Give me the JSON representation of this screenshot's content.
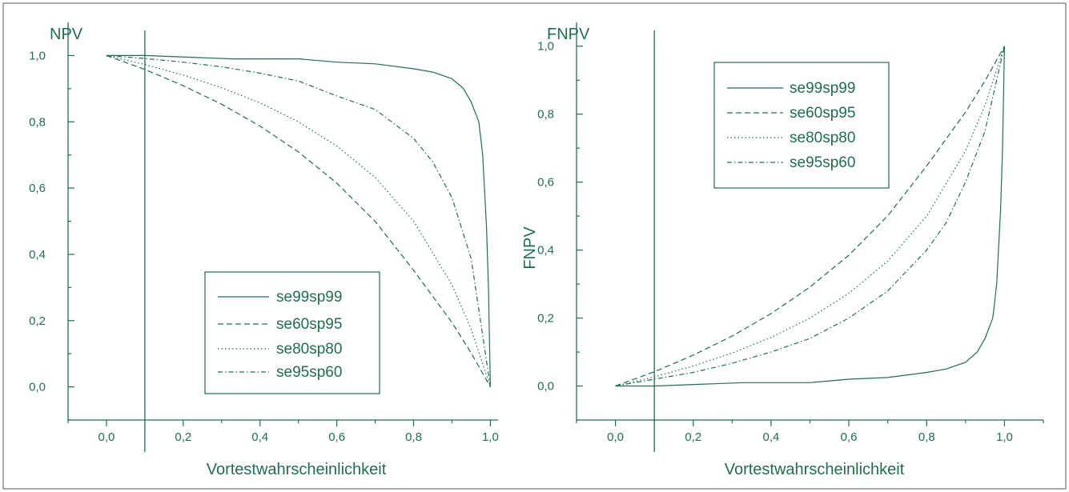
{
  "colors": {
    "ink": "#1f6e4d",
    "axis": "#1f6e4d",
    "frame": "#555555"
  },
  "chart_data": [
    {
      "type": "line",
      "title": "NPV",
      "xlabel": "Vortestwahrscheinlichkeit",
      "ylabel": "",
      "xlim": [
        -0.1,
        1.02
      ],
      "ylim": [
        -0.1,
        1.1
      ],
      "xticks": [
        0.0,
        0.2,
        0.4,
        0.6,
        0.8,
        1.0
      ],
      "xtick_labels": [
        "0,0",
        "0,2",
        "0,4",
        "0,6",
        "0,8",
        "1,0"
      ],
      "yticks": [
        0.0,
        0.2,
        0.4,
        0.6,
        0.8,
        1.0
      ],
      "ytick_labels": [
        "0,0",
        "0,2",
        "0,4",
        "0,6",
        "0,8",
        "1,0"
      ],
      "vline": 0.1,
      "legend_position": "bottom-right",
      "series": [
        {
          "name": "se99sp99",
          "style": "solid",
          "x": [
            0,
            0.1,
            0.33,
            0.5,
            0.6,
            0.7,
            0.8,
            0.85,
            0.9,
            0.93,
            0.95,
            0.97,
            0.98,
            0.99,
            0.995,
            1.0
          ],
          "y": [
            1.0,
            1.0,
            0.99,
            0.99,
            0.98,
            0.975,
            0.96,
            0.95,
            0.93,
            0.9,
            0.86,
            0.8,
            0.7,
            0.48,
            0.3,
            0.0
          ]
        },
        {
          "name": "se60sp95",
          "style": "dashed",
          "x": [
            0,
            0.1,
            0.2,
            0.3,
            0.4,
            0.5,
            0.6,
            0.7,
            0.8,
            0.9,
            0.95,
            1.0
          ],
          "y": [
            1.0,
            0.958,
            0.909,
            0.853,
            0.787,
            0.709,
            0.615,
            0.499,
            0.352,
            0.194,
            0.102,
            0.0
          ]
        },
        {
          "name": "se80sp80",
          "style": "dotted",
          "x": [
            0,
            0.1,
            0.2,
            0.3,
            0.4,
            0.5,
            0.6,
            0.7,
            0.8,
            0.9,
            0.95,
            1.0
          ],
          "y": [
            1.0,
            0.973,
            0.941,
            0.903,
            0.857,
            0.8,
            0.727,
            0.632,
            0.5,
            0.308,
            0.174,
            0.0
          ]
        },
        {
          "name": "se95sp60",
          "style": "dashdot",
          "x": [
            0,
            0.1,
            0.2,
            0.3,
            0.4,
            0.5,
            0.6,
            0.7,
            0.8,
            0.85,
            0.9,
            0.95,
            1.0
          ],
          "y": [
            1.0,
            0.991,
            0.98,
            0.966,
            0.947,
            0.923,
            0.878,
            0.837,
            0.75,
            0.679,
            0.571,
            0.387,
            0.0
          ]
        }
      ]
    },
    {
      "type": "line",
      "title": "FNPV",
      "xlabel": "Vortestwahrscheinlichkeit",
      "ylabel": "FNPV",
      "xlim": [
        -0.1,
        1.1
      ],
      "ylim": [
        -0.1,
        1.07
      ],
      "xticks": [
        0.0,
        0.2,
        0.4,
        0.6,
        0.8,
        1.0
      ],
      "xtick_labels": [
        "0,0",
        "0,2",
        "0,4",
        "0,6",
        "0,8",
        "1,0"
      ],
      "yticks": [
        0.0,
        0.2,
        0.4,
        0.6,
        0.8,
        1.0
      ],
      "ytick_labels": [
        "0,0",
        "0,2",
        "0,4",
        "0,6",
        "0,8",
        "1,0"
      ],
      "vline": 0.1,
      "legend_position": "top-right",
      "series": [
        {
          "name": "se99sp99",
          "style": "solid",
          "x": [
            0,
            0.1,
            0.33,
            0.5,
            0.6,
            0.7,
            0.8,
            0.85,
            0.9,
            0.93,
            0.95,
            0.97,
            0.98,
            0.99,
            0.995,
            1.0
          ],
          "y": [
            0.0,
            0.0,
            0.01,
            0.01,
            0.02,
            0.025,
            0.04,
            0.05,
            0.07,
            0.1,
            0.14,
            0.2,
            0.3,
            0.52,
            0.7,
            1.0
          ]
        },
        {
          "name": "se60sp95",
          "style": "dashed",
          "x": [
            0,
            0.1,
            0.2,
            0.3,
            0.4,
            0.5,
            0.6,
            0.7,
            0.8,
            0.9,
            0.95,
            1.0
          ],
          "y": [
            0.0,
            0.042,
            0.091,
            0.147,
            0.213,
            0.291,
            0.385,
            0.501,
            0.648,
            0.806,
            0.898,
            1.0
          ]
        },
        {
          "name": "se80sp80",
          "style": "dotted",
          "x": [
            0,
            0.1,
            0.2,
            0.3,
            0.4,
            0.5,
            0.6,
            0.7,
            0.8,
            0.9,
            0.95,
            1.0
          ],
          "y": [
            0.0,
            0.027,
            0.059,
            0.097,
            0.143,
            0.2,
            0.273,
            0.368,
            0.5,
            0.692,
            0.826,
            1.0
          ]
        },
        {
          "name": "se95sp60",
          "style": "dashdot",
          "x": [
            0,
            0.1,
            0.2,
            0.3,
            0.4,
            0.5,
            0.6,
            0.7,
            0.8,
            0.85,
            0.9,
            0.95,
            1.0
          ],
          "y": [
            0.0,
            0.02,
            0.04,
            0.067,
            0.1,
            0.14,
            0.2,
            0.28,
            0.4,
            0.48,
            0.6,
            0.75,
            1.0
          ]
        }
      ]
    }
  ]
}
